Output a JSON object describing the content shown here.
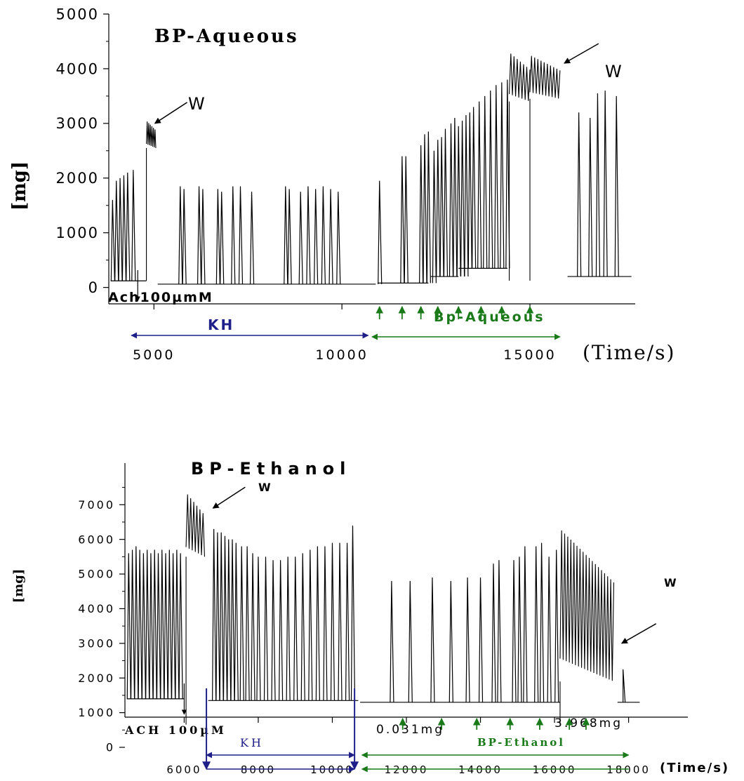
{
  "chart_data": [
    {
      "type": "line",
      "title": "BP-Aqueous",
      "ylabel": "[mg]",
      "xlabel": "(Time/s)",
      "ylim": [
        -300,
        5000
      ],
      "xlim": [
        3800,
        17800
      ],
      "y_ticks": [
        "0",
        "1000",
        "2000",
        "3000",
        "4000",
        "5000"
      ],
      "y_tick_values": [
        0,
        1000,
        2000,
        3000,
        4000,
        5000
      ],
      "x_ticks": [
        "5000",
        "10000",
        "15000"
      ],
      "x_tick_values": [
        5000,
        10000,
        15000
      ],
      "grid": false,
      "annotations": {
        "ach": "Ach100µmM",
        "w1": "W",
        "w2": "W",
        "kh": "KH",
        "extract": "Bp-Aqueous"
      },
      "colors": {
        "trace": "#000000",
        "kh": "#1f1f8a",
        "extract": "#1a7a1a"
      },
      "ach_x": 4570,
      "w1": {
        "x": 4950,
        "y": 3000
      },
      "w2": {
        "x": 15800,
        "y": 4100
      },
      "kh_range": [
        4400,
        10700
      ],
      "extract_range": [
        10800,
        15800
      ],
      "extract_arrow_x": [
        11000,
        11600,
        12100,
        12550,
        13100,
        13700,
        14250,
        15000
      ],
      "baseline_segments": [
        {
          "x0": 3850,
          "x1": 4800,
          "y": 120
        },
        {
          "x0": 5100,
          "x1": 10900,
          "y": 60
        },
        {
          "x0": 10950,
          "x1": 12300,
          "y": 80
        },
        {
          "x0": 12350,
          "x1": 13100,
          "y": 200
        },
        {
          "x0": 13100,
          "x1": 14400,
          "y": 350
        },
        {
          "x0": 16000,
          "x1": 17700,
          "y": 200
        }
      ],
      "spikes": [
        [
          3900,
          1600
        ],
        [
          4000,
          1950
        ],
        [
          4100,
          2000
        ],
        [
          4200,
          2050
        ],
        [
          4300,
          2100
        ],
        [
          4450,
          2150
        ],
        [
          5700,
          1850
        ],
        [
          5800,
          1800
        ],
        [
          6200,
          1850
        ],
        [
          6300,
          1800
        ],
        [
          6700,
          1800
        ],
        [
          6800,
          1750
        ],
        [
          7100,
          1850
        ],
        [
          7300,
          1850
        ],
        [
          7600,
          1750
        ],
        [
          8500,
          1850
        ],
        [
          8600,
          1800
        ],
        [
          8900,
          1750
        ],
        [
          9100,
          1850
        ],
        [
          9300,
          1800
        ],
        [
          9500,
          1850
        ],
        [
          9700,
          1800
        ],
        [
          9900,
          1750
        ],
        [
          11000,
          1950
        ],
        [
          11600,
          2400
        ],
        [
          11700,
          2400
        ],
        [
          12100,
          2600
        ],
        [
          12200,
          2800
        ],
        [
          12300,
          2850
        ],
        [
          12450,
          2500
        ],
        [
          12550,
          2700
        ],
        [
          12650,
          2750
        ],
        [
          12750,
          2900
        ],
        [
          12900,
          3000
        ],
        [
          13000,
          3100
        ],
        [
          13100,
          2950
        ],
        [
          13200,
          3050
        ],
        [
          13300,
          3150
        ],
        [
          13400,
          3200
        ],
        [
          13500,
          3300
        ],
        [
          13650,
          3400
        ],
        [
          13800,
          3500
        ],
        [
          13950,
          3600
        ],
        [
          14100,
          3700
        ],
        [
          14250,
          3750
        ],
        [
          14400,
          3800
        ],
        [
          16300,
          3200
        ],
        [
          16600,
          3100
        ],
        [
          16800,
          3550
        ],
        [
          17000,
          3600
        ],
        [
          17300,
          3500
        ]
      ],
      "plateaus": [
        {
          "x0": 4800,
          "x1": 5050,
          "ymin": 2550,
          "ymax": 3050
        },
        {
          "x0": 14450,
          "x1": 15000,
          "ymin": 3400,
          "ymax": 4300
        },
        {
          "x0": 15000,
          "x1": 15800,
          "ymin": 3450,
          "ymax": 4250
        }
      ]
    },
    {
      "type": "line",
      "title": "BP-Ethanol",
      "ylabel": "[mg]",
      "xlabel": "(Time/s)",
      "ylim": [
        0,
        8200
      ],
      "xlim": [
        4400,
        19600
      ],
      "y_ticks": [
        "0",
        "1000",
        "2000",
        "3000",
        "4000",
        "5000",
        "6000",
        "7000"
      ],
      "y_tick_values": [
        0,
        1000,
        2000,
        3000,
        4000,
        5000,
        6000,
        7000
      ],
      "x_ticks": [
        "6000",
        "8000",
        "10000",
        "12000",
        "14000",
        "16000",
        "18000"
      ],
      "x_tick_values": [
        6000,
        8000,
        10000,
        12000,
        14000,
        16000,
        18000
      ],
      "grid": false,
      "annotations": {
        "ach": "ACH 100µM",
        "w1": "W",
        "w2": "W",
        "kh": "KH",
        "extract": "BP-Ethanol",
        "dose_low": "0.031mg",
        "dose_high": "3.968mg"
      },
      "colors": {
        "trace": "#000000",
        "kh": "#1f1f8a",
        "extract": "#1a7a1a"
      },
      "ach_x": 6000,
      "w1": {
        "x": 6700,
        "y": 6900
      },
      "w2": {
        "x": 17700,
        "y": 3000
      },
      "kh_range": [
        6600,
        10600
      ],
      "extract_range": [
        10800,
        18000
      ],
      "extract_arrow_x": [
        11900,
        12950,
        13900,
        14800,
        15600,
        16400,
        16850
      ],
      "baseline_segments": [
        {
          "x0": 4450,
          "x1": 6000,
          "y": 1400
        },
        {
          "x0": 6650,
          "x1": 10700,
          "y": 1350
        },
        {
          "x0": 10750,
          "x1": 16150,
          "y": 1300
        },
        {
          "x0": 17700,
          "x1": 18300,
          "y": 1300
        }
      ],
      "spikes": [
        [
          4500,
          5600
        ],
        [
          4600,
          5700
        ],
        [
          4700,
          5800
        ],
        [
          4800,
          5700
        ],
        [
          4900,
          5600
        ],
        [
          5000,
          5700
        ],
        [
          5100,
          5600
        ],
        [
          5200,
          5700
        ],
        [
          5300,
          5600
        ],
        [
          5400,
          5700
        ],
        [
          5500,
          5600
        ],
        [
          5600,
          5700
        ],
        [
          5700,
          5600
        ],
        [
          5800,
          5700
        ],
        [
          5900,
          5600
        ],
        [
          6800,
          6300
        ],
        [
          6900,
          6200
        ],
        [
          7000,
          6200
        ],
        [
          7100,
          6100
        ],
        [
          7200,
          6000
        ],
        [
          7300,
          6000
        ],
        [
          7400,
          5900
        ],
        [
          7550,
          5800
        ],
        [
          7700,
          5800
        ],
        [
          7850,
          5600
        ],
        [
          8000,
          5500
        ],
        [
          8200,
          5500
        ],
        [
          8400,
          5400
        ],
        [
          8600,
          5400
        ],
        [
          8800,
          5500
        ],
        [
          9000,
          5500
        ],
        [
          9200,
          5600
        ],
        [
          9400,
          5700
        ],
        [
          9600,
          5800
        ],
        [
          9800,
          5800
        ],
        [
          10000,
          5900
        ],
        [
          10200,
          5900
        ],
        [
          10400,
          5900
        ],
        [
          10550,
          6400
        ],
        [
          11600,
          4800
        ],
        [
          12100,
          4800
        ],
        [
          12700,
          4900
        ],
        [
          13200,
          4800
        ],
        [
          13650,
          4900
        ],
        [
          14000,
          4900
        ],
        [
          14350,
          5300
        ],
        [
          14500,
          5400
        ],
        [
          14900,
          5400
        ],
        [
          15050,
          5500
        ],
        [
          15200,
          5800
        ],
        [
          15500,
          5800
        ],
        [
          15650,
          5900
        ],
        [
          15850,
          5500
        ],
        [
          16050,
          5700
        ]
      ],
      "plateaus": [
        {
          "x0": 6050,
          "x1": 6550,
          "ymin": 5500,
          "ymax": 7350
        },
        {
          "x0": 16150,
          "x1": 17600,
          "ymin": 1900,
          "ymax": 6300
        }
      ],
      "tail_spike": [
        17850,
        2250
      ]
    }
  ]
}
